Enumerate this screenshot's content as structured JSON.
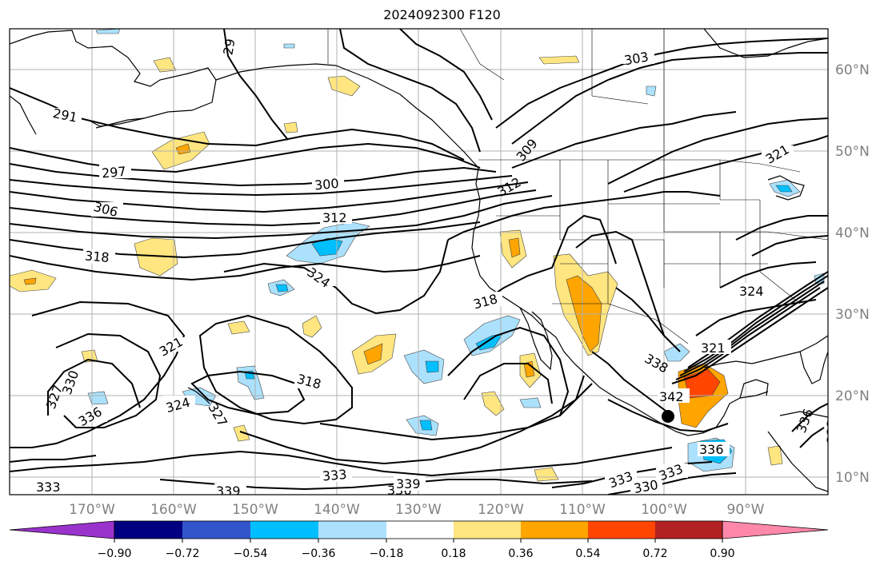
{
  "title": "2024092300 F120",
  "map": {
    "lon_labels": [
      "170°W",
      "160°W",
      "150°W",
      "140°W",
      "130°W",
      "120°W",
      "110°W",
      "100°W",
      "90°W"
    ],
    "lat_labels": [
      "60°N",
      "50°N",
      "40°N",
      "30°N",
      "20°N",
      "10°N"
    ],
    "contour_labels": [
      "291",
      "297",
      "300",
      "306",
      "312",
      "318",
      "324",
      "321",
      "318",
      "330",
      "327",
      "336",
      "324",
      "327",
      "333",
      "333",
      "339",
      "336",
      "339",
      "330",
      "333",
      "336",
      "342",
      "333",
      "321",
      "324",
      "321",
      "318",
      "309",
      "303",
      "312",
      "338",
      "336",
      "333",
      "29"
    ],
    "marker": "black-dot"
  },
  "colorbar": {
    "tick_labels": [
      "−0.90",
      "−0.72",
      "−0.54",
      "−0.36",
      "−0.18",
      "0.18",
      "0.36",
      "0.54",
      "0.72",
      "0.90"
    ],
    "colors": [
      "#9933cc",
      "#000080",
      "#3355cc",
      "#00bfff",
      "#abe1fd",
      "#ffffff",
      "#ffe680",
      "#ffa500",
      "#ff4500",
      "#b22222",
      "#ff88aa"
    ]
  },
  "colors": {
    "contour": "#000000",
    "coast": "#000000",
    "grid": "#b0b0b0",
    "axis_label": "#808080",
    "pos1": "#ffe680",
    "pos2": "#ffa500",
    "pos3": "#ff4500",
    "neg1": "#abe1fd",
    "neg2": "#00bfff"
  }
}
